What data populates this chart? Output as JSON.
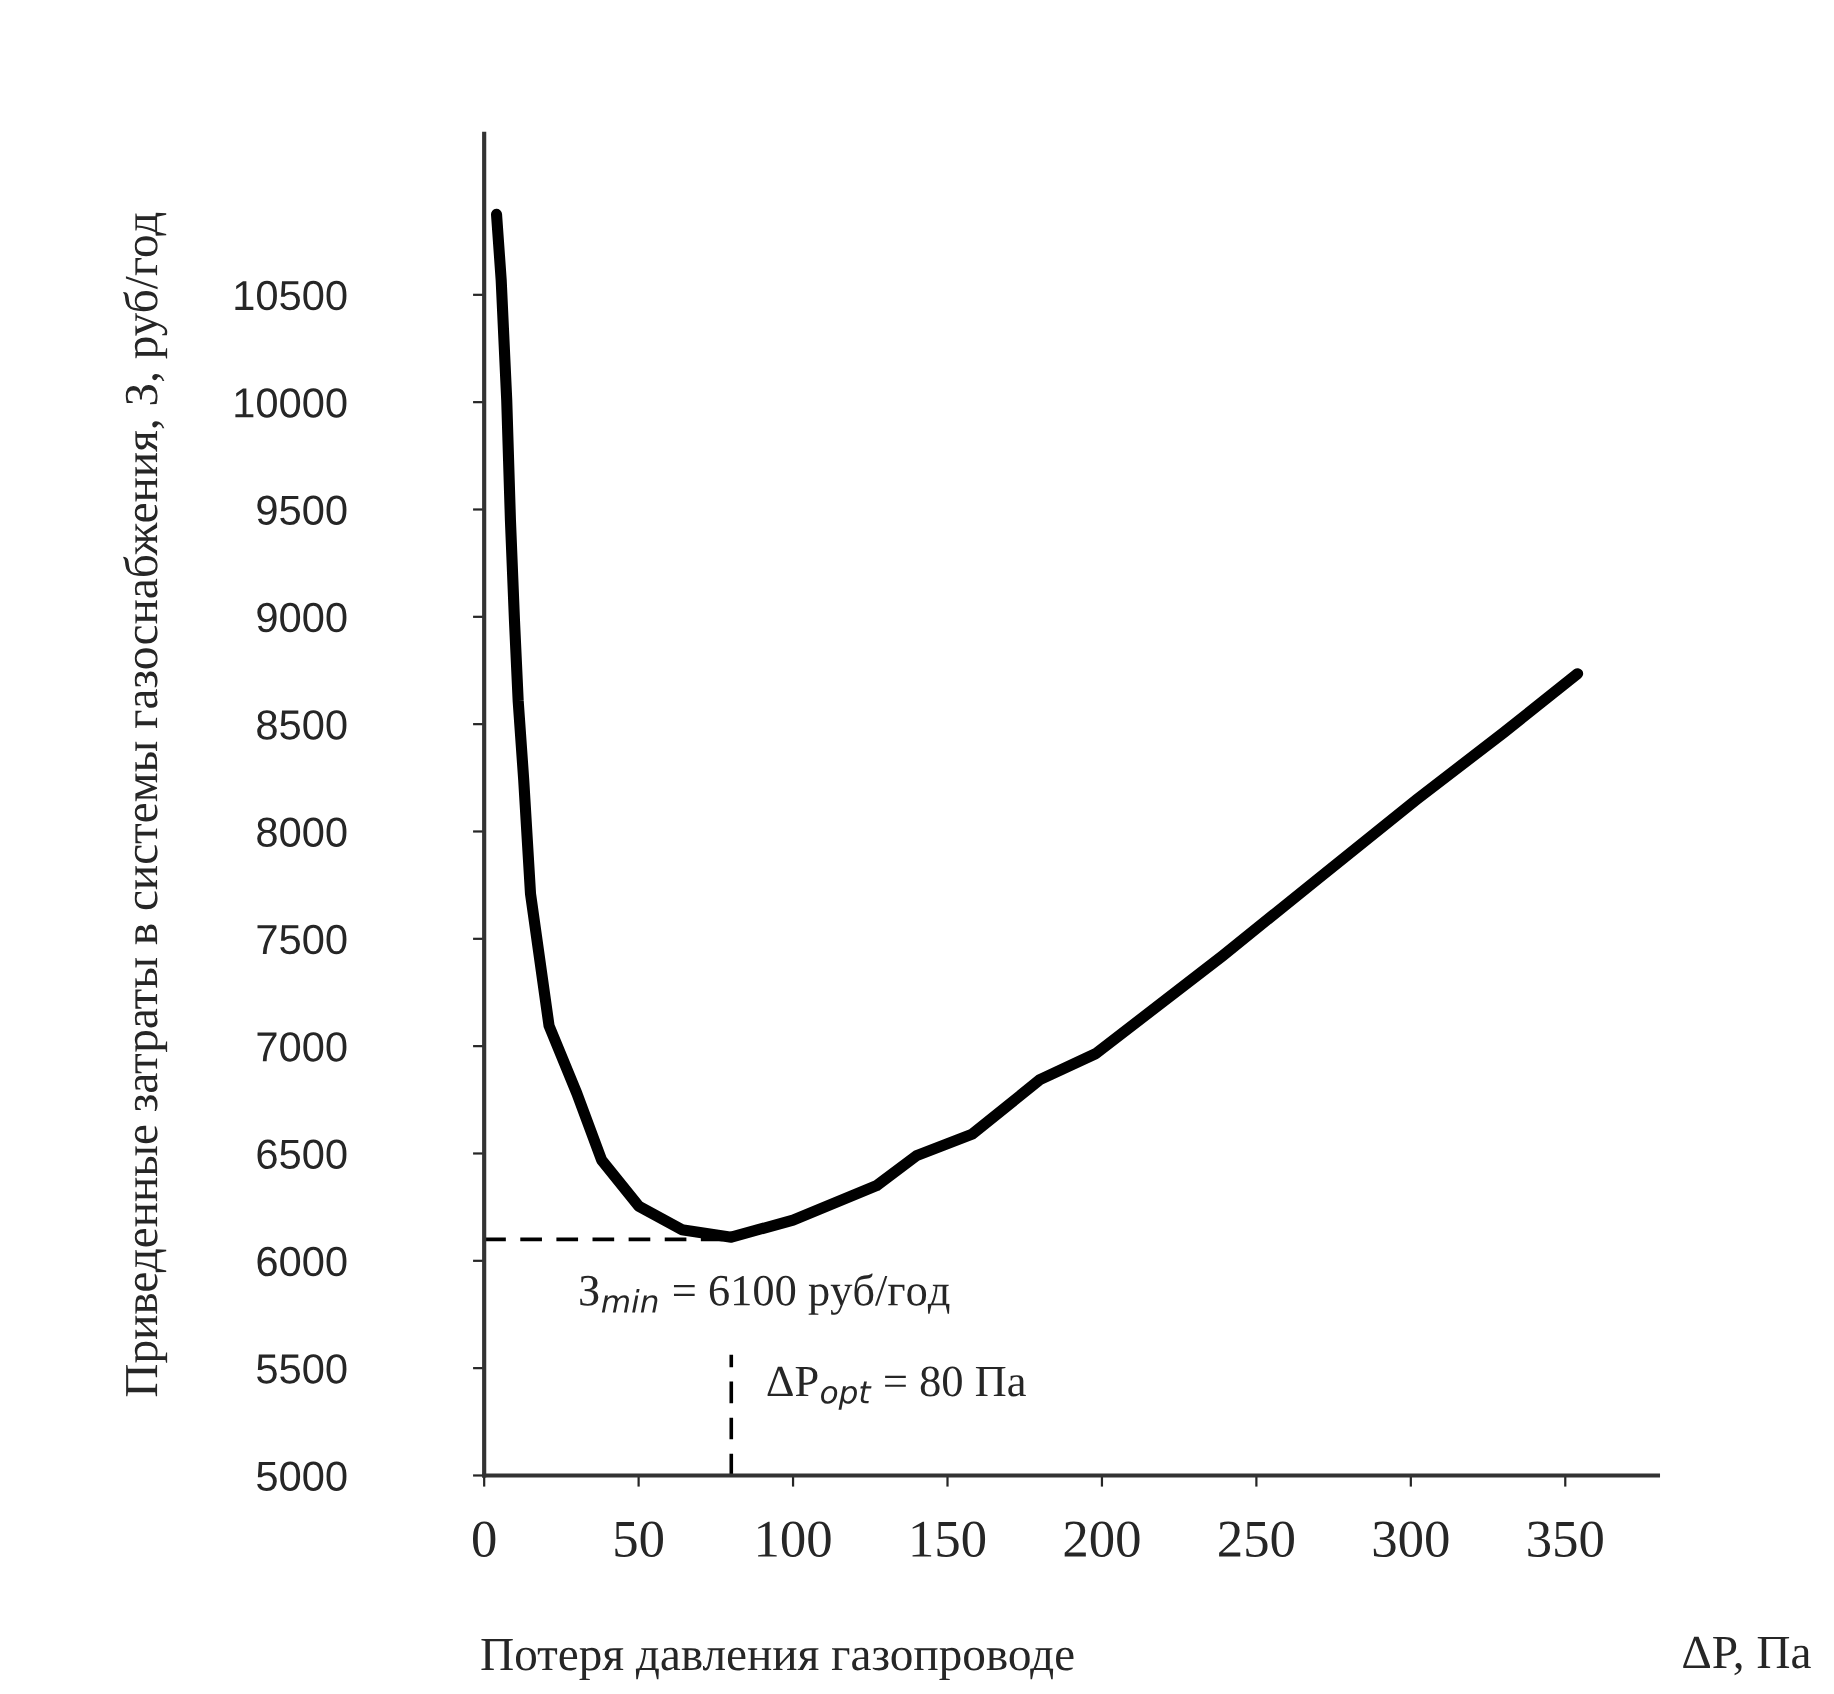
{
  "chart_data": {
    "type": "line",
    "xlabel": "Потеря давления газопроводе",
    "ylabel": "Приведенные затраты в системы газоснабжения, З, руб/год",
    "x": [
      4,
      5.5,
      7.3,
      8.5,
      9.8,
      11,
      12.8,
      15,
      21,
      30,
      38,
      50,
      64,
      80,
      100,
      127,
      140,
      158,
      180,
      198,
      239,
      270,
      302,
      330,
      354
    ],
    "series": [
      {
        "color": "#000000",
        "values": [
          10875,
          10570,
          10010,
          9450,
          8985,
          8610,
          8240,
          7710,
          7095,
          6780,
          6470,
          6255,
          6145,
          6110,
          6190,
          6350,
          6490,
          6590,
          6845,
          6965,
          7420,
          7780,
          8150,
          8460,
          8735
        ]
      }
    ],
    "xlim": [
      0,
      380
    ],
    "xticks": [
      0,
      50,
      100,
      150,
      200,
      250,
      300,
      350
    ],
    "ylim": [
      5000,
      11250
    ],
    "yticks": [
      5000,
      5500,
      6000,
      6500,
      7000,
      7500,
      8000,
      8500,
      9000,
      9500,
      10000,
      10500
    ],
    "ref_lines": [
      {
        "axis": "y",
        "value": 6100,
        "line_style": "dashed",
        "color": "#000000"
      },
      {
        "axis": "x",
        "value": 80,
        "line_style": "dashed",
        "color": "#000000"
      }
    ],
    "annotations": [
      "З$_{min}$ = 6100 руб/год",
      "ΔP$_{opt}$ = 80 Па",
      "ΔP, Па"
    ],
    "grid": false,
    "legend": false,
    "marker": "none",
    "line_style": "solid"
  }
}
